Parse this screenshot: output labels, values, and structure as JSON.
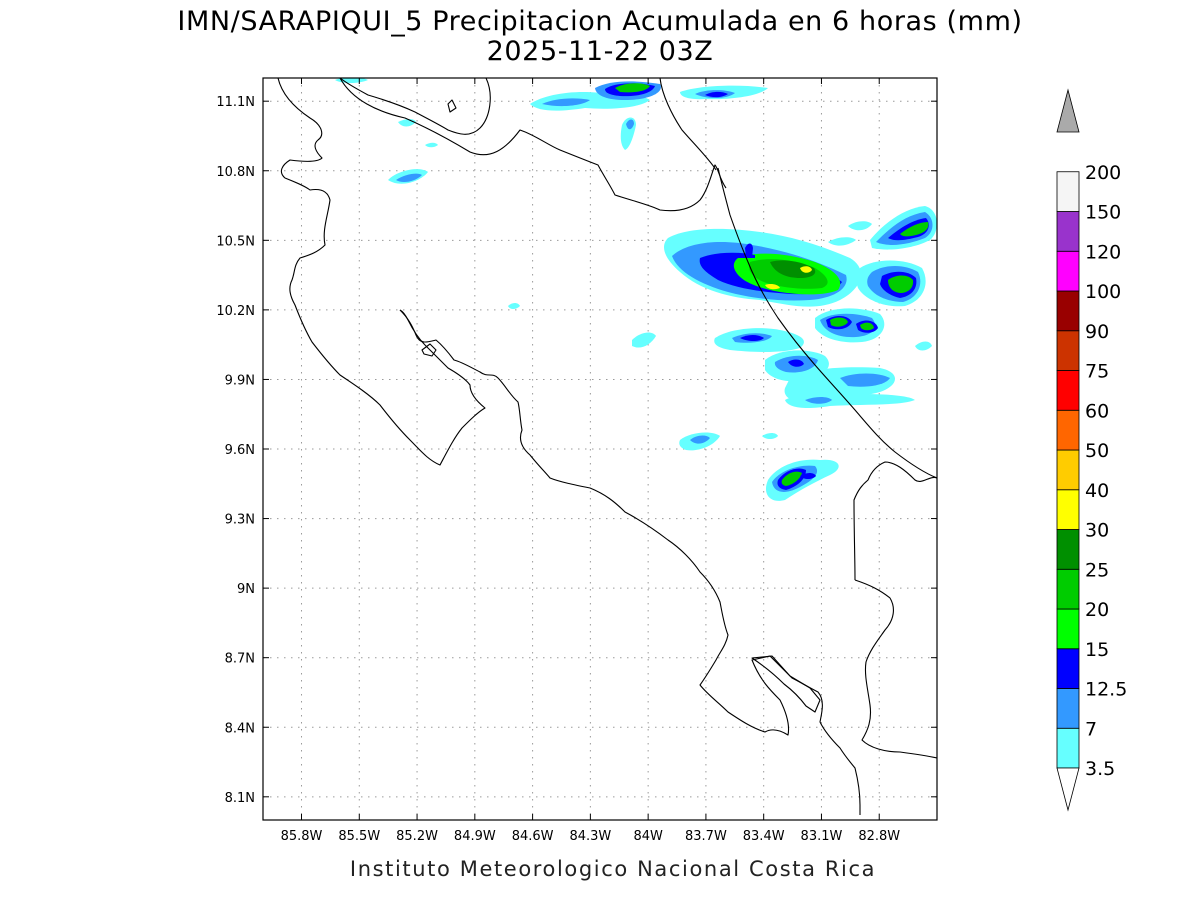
{
  "title": {
    "line1": "IMN/SARAPIQUI_5 Precipitacion Acumulada en 6 horas (mm)",
    "line2": "2025-11-22 03Z"
  },
  "map": {
    "lon_range": [
      -86.0,
      -82.5
    ],
    "lat_range": [
      8.0,
      11.2
    ],
    "lon_ticks": [
      {
        "value": -85.8,
        "label": "85.8W"
      },
      {
        "value": -85.5,
        "label": "85.5W"
      },
      {
        "value": -85.2,
        "label": "85.2W"
      },
      {
        "value": -84.9,
        "label": "84.9W"
      },
      {
        "value": -84.6,
        "label": "84.6W"
      },
      {
        "value": -84.3,
        "label": "84.3W"
      },
      {
        "value": -84.0,
        "label": "84W"
      },
      {
        "value": -83.7,
        "label": "83.7W"
      },
      {
        "value": -83.4,
        "label": "83.4W"
      },
      {
        "value": -83.1,
        "label": "83.1W"
      },
      {
        "value": -82.8,
        "label": "82.8W"
      }
    ],
    "lat_ticks": [
      {
        "value": 11.1,
        "label": "11.1N"
      },
      {
        "value": 10.8,
        "label": "10.8N"
      },
      {
        "value": 10.5,
        "label": "10.5N"
      },
      {
        "value": 10.2,
        "label": "10.2N"
      },
      {
        "value": 9.9,
        "label": "9.9N"
      },
      {
        "value": 9.6,
        "label": "9.6N"
      },
      {
        "value": 9.3,
        "label": "9.3N"
      },
      {
        "value": 9.0,
        "label": "9N"
      },
      {
        "value": 8.7,
        "label": "8.7N"
      },
      {
        "value": 8.4,
        "label": "8.4N"
      },
      {
        "value": 8.1,
        "label": "8.1N"
      }
    ],
    "grid": true
  },
  "legend": {
    "colors": [
      "#66ffff",
      "#3399ff",
      "#0000ff",
      "#00ff00",
      "#00cc00",
      "#008f00",
      "#ffff00",
      "#ffcc00",
      "#ff6600",
      "#ff0000",
      "#cc3300",
      "#990000",
      "#ff00ff",
      "#9933cc",
      "#f5f5f5",
      "#aaaaaa"
    ],
    "labels": [
      "3.5",
      "7",
      "12.5",
      "15",
      "20",
      "25",
      "30",
      "40",
      "50",
      "60",
      "75",
      "90",
      "100",
      "120",
      "150",
      "200"
    ]
  },
  "rain_cells": [
    {
      "name": "cell-northeast-main",
      "lon": -83.3,
      "lat": 10.45,
      "peak_mm": 30
    },
    {
      "name": "cell-far-northeast",
      "lon": -82.7,
      "lat": 10.62,
      "peak_mm": 20
    },
    {
      "name": "cell-east-coast",
      "lon": -82.75,
      "lat": 10.4,
      "peak_mm": 20
    },
    {
      "name": "cell-north-border",
      "lon": -84.0,
      "lat": 11.2,
      "peak_mm": 20
    },
    {
      "name": "cell-limon-south",
      "lon": -83.2,
      "lat": 9.53,
      "peak_mm": 20
    },
    {
      "name": "cell-central-east",
      "lon": -83.0,
      "lat": 10.2,
      "peak_mm": 20
    }
  ],
  "footer": "Instituto Meteorologico Nacional Costa Rica"
}
